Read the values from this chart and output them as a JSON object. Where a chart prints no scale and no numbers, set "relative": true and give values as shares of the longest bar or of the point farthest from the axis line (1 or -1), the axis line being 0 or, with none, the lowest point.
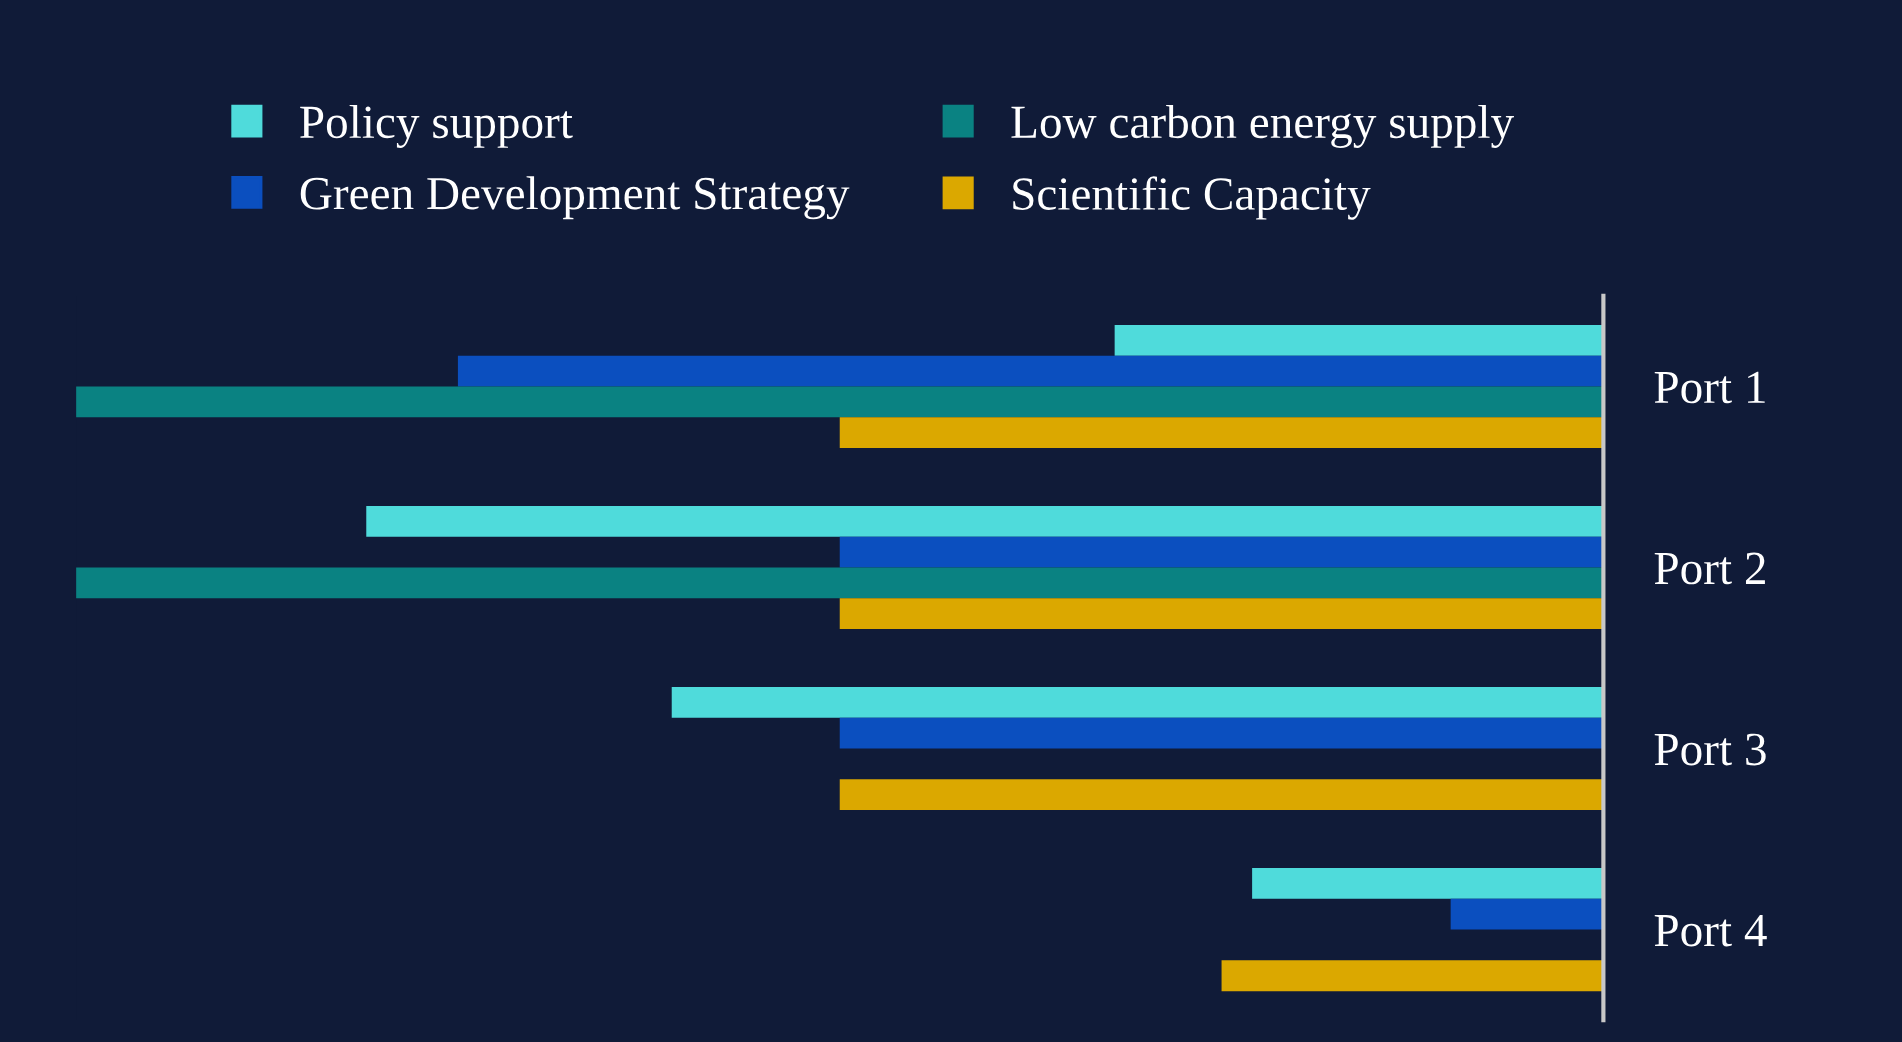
{
  "chart_data": {
    "type": "bar",
    "orientation": "horizontal",
    "relative": true,
    "legend": "top",
    "categories": [
      "Port 1",
      "Port 2",
      "Port 3",
      "Port 4"
    ],
    "series": [
      {
        "name": "Policy support",
        "color": "#4fdbdb",
        "values": [
          -0.32,
          -0.81,
          -0.61,
          -0.23
        ]
      },
      {
        "name": "Green Development Strategy",
        "color": "#0b4fbf",
        "values": [
          -0.75,
          -0.5,
          -0.5,
          -0.1
        ]
      },
      {
        "name": "Low carbon energy supply",
        "color": "#0a8282",
        "values": [
          -1.0,
          -1.0,
          null,
          null
        ]
      },
      {
        "name": "Scientific Capacity",
        "color": "#dba800",
        "values": [
          -0.5,
          -0.5,
          -0.5,
          -0.25
        ]
      }
    ]
  }
}
